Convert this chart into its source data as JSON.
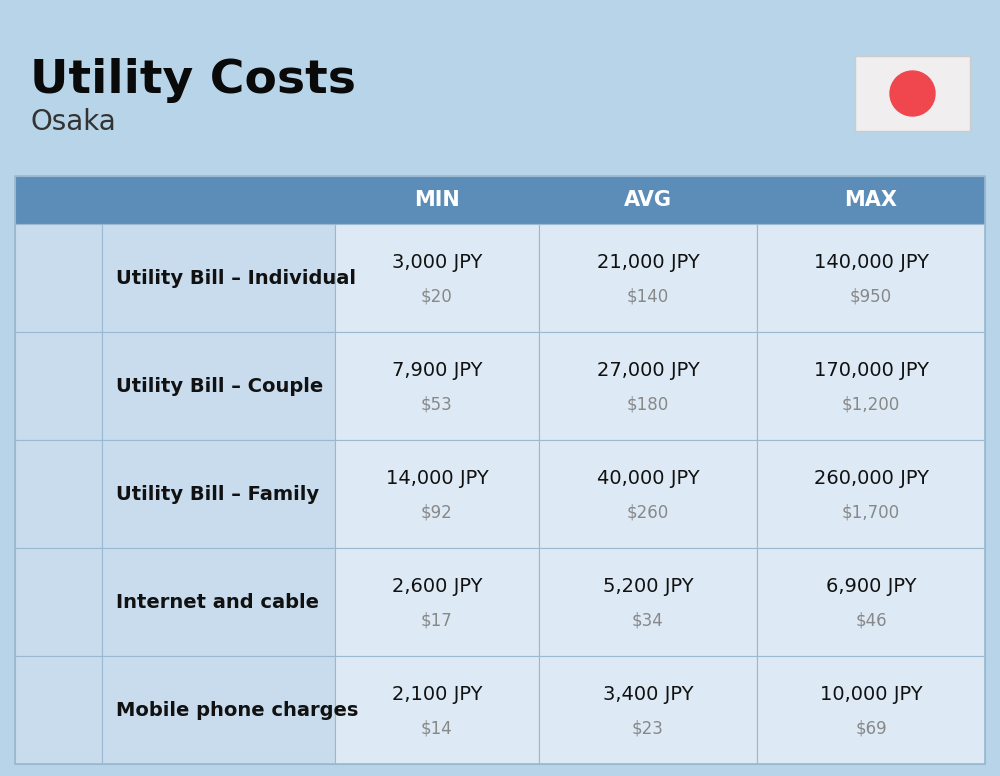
{
  "title": "Utility Costs",
  "subtitle": "Osaka",
  "background_color": "#b8d4e8",
  "header_bg_color": "#5b8db8",
  "header_text_color": "#ffffff",
  "row_bg_color": "#c8dced",
  "cell_bg_color": "#ddeaf5",
  "grid_line_color": "#9ab8d0",
  "col_headers": [
    "MIN",
    "AVG",
    "MAX"
  ],
  "rows": [
    {
      "label": "Utility Bill – Individual",
      "min_jpy": "3,000 JPY",
      "min_usd": "$20",
      "avg_jpy": "21,000 JPY",
      "avg_usd": "$140",
      "max_jpy": "140,000 JPY",
      "max_usd": "$950"
    },
    {
      "label": "Utility Bill – Couple",
      "min_jpy": "7,900 JPY",
      "min_usd": "$53",
      "avg_jpy": "27,000 JPY",
      "avg_usd": "$180",
      "max_jpy": "170,000 JPY",
      "max_usd": "$1,200"
    },
    {
      "label": "Utility Bill – Family",
      "min_jpy": "14,000 JPY",
      "min_usd": "$92",
      "avg_jpy": "40,000 JPY",
      "avg_usd": "$260",
      "max_jpy": "260,000 JPY",
      "max_usd": "$1,700"
    },
    {
      "label": "Internet and cable",
      "min_jpy": "2,600 JPY",
      "min_usd": "$17",
      "avg_jpy": "5,200 JPY",
      "avg_usd": "$34",
      "max_jpy": "6,900 JPY",
      "max_usd": "$46"
    },
    {
      "label": "Mobile phone charges",
      "min_jpy": "2,100 JPY",
      "min_usd": "$14",
      "avg_jpy": "3,400 JPY",
      "avg_usd": "$23",
      "max_jpy": "10,000 JPY",
      "max_usd": "$69"
    }
  ],
  "title_fontsize": 34,
  "subtitle_fontsize": 20,
  "header_fontsize": 15,
  "label_fontsize": 14,
  "value_fontsize": 14,
  "usd_fontsize": 12,
  "flag_circle_color": "#f0474e",
  "flag_bg_color": "#f0eeee"
}
